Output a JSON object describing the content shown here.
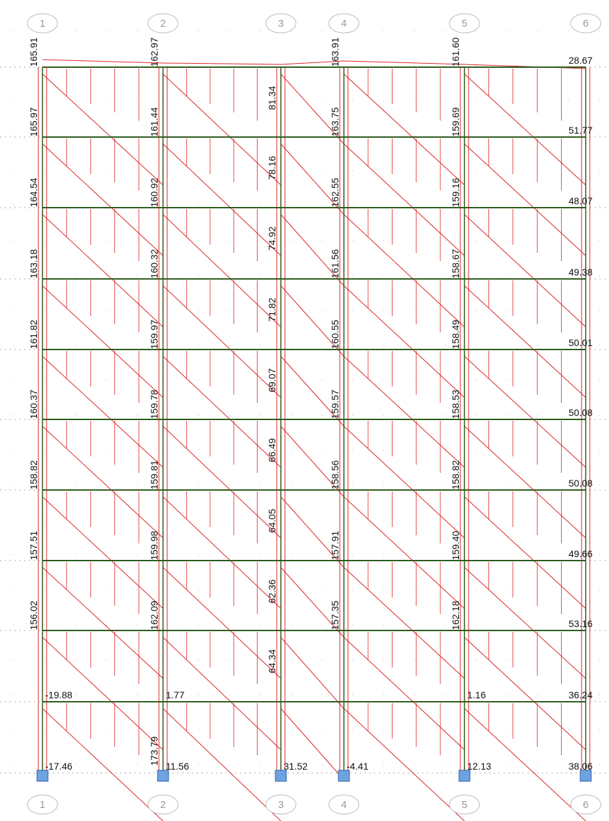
{
  "grid_top": [
    "1",
    "2",
    "3",
    "4",
    "5",
    "6"
  ],
  "grid_bottom": [
    "1",
    "2",
    "3",
    "4",
    "5",
    "6"
  ],
  "columns": [
    {
      "rotated": [
        "165.91",
        "165.97",
        "164.54",
        "163.18",
        "161.82",
        "160.37",
        "158.82",
        "157.51",
        "156.02"
      ],
      "horizontal": [
        "-19.88",
        "-17.46"
      ]
    },
    {
      "rotated": [
        "162.97",
        "161.44",
        "160.92",
        "160.32",
        "159.97",
        "159.78",
        "159.81",
        "159.98",
        "162.09",
        "173.79"
      ],
      "horizontal": [
        "1.77",
        "11.56"
      ]
    },
    {
      "rotated": [
        "81.34",
        "78.16",
        "74.92",
        "71.82",
        "69.07",
        "66.49",
        "64.05",
        "62.36",
        "64.34"
      ],
      "horizontal": [
        "31.52"
      ]
    },
    {
      "rotated": [
        "163.91",
        "163.75",
        "162.55",
        "161.56",
        "160.55",
        "159.57",
        "158.56",
        "157.91",
        "157.35"
      ],
      "horizontal": [
        "-4.41"
      ]
    },
    {
      "rotated": [
        "161.60",
        "159.69",
        "159.16",
        "158.67",
        "158.49",
        "158.53",
        "158.82",
        "159.40",
        "162.18"
      ],
      "horizontal": [
        "1.16",
        "12.13"
      ]
    },
    {
      "rotated": [],
      "horizontal": [
        "28.67",
        "51.77",
        "48.07",
        "49.38",
        "50.01",
        "50.08",
        "50.08",
        "49.66",
        "53.16",
        "36.24",
        "38.06"
      ]
    }
  ]
}
